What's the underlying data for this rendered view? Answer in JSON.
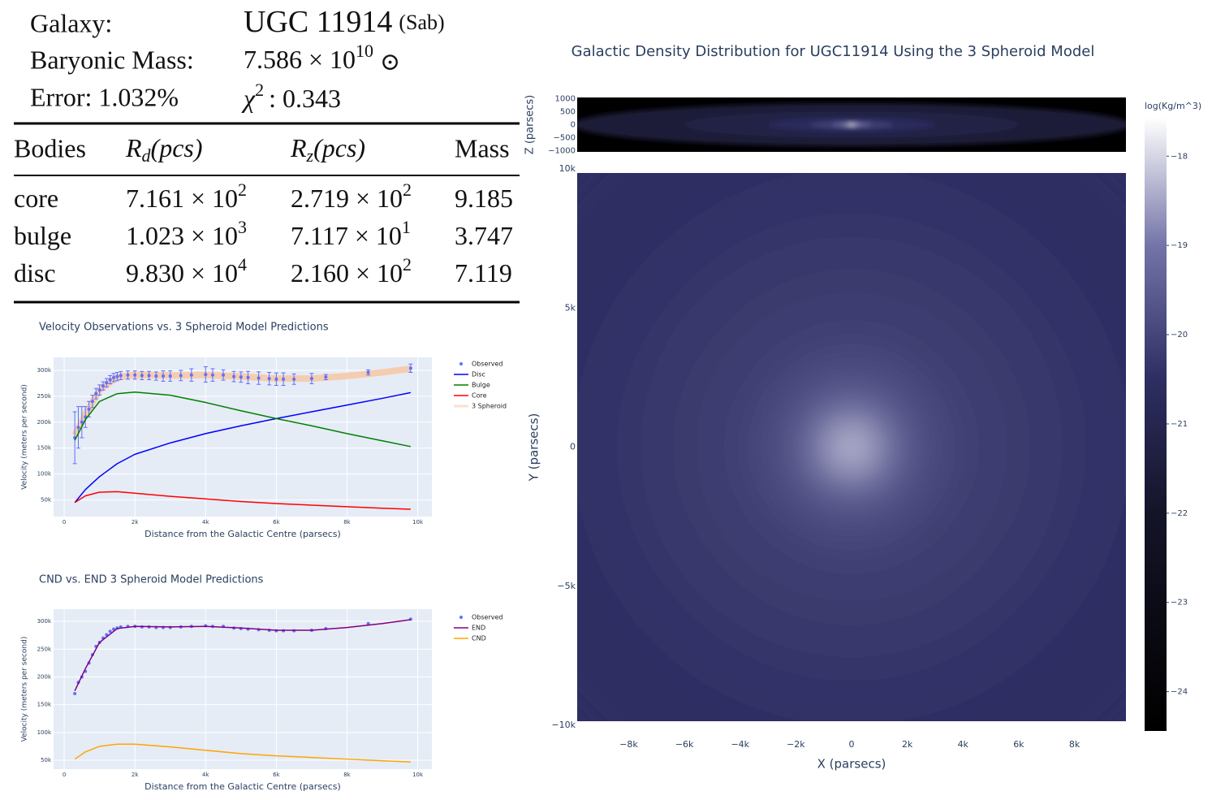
{
  "info": {
    "galaxy_label": "Galaxy:",
    "galaxy": "UGC 11914",
    "galaxy_type": "(Sab)",
    "mass_label": "Baryonic Mass:",
    "mass": [
      "7.586 × 10",
      "10",
      "⊙"
    ],
    "error": "Error: 1.032%",
    "chi": [
      "χ",
      "2",
      ": 0.343"
    ]
  },
  "table": {
    "header": [
      [
        "Bodies"
      ],
      [
        "R",
        "d",
        "(pcs)"
      ],
      [
        "R",
        "z",
        "(pcs)"
      ],
      [
        "Mass"
      ]
    ],
    "rows": [
      [
        [
          "core"
        ],
        [
          "7.161 × 10",
          "2"
        ],
        [
          "2.719 × 10",
          "2"
        ],
        [
          "9.185"
        ]
      ],
      [
        [
          "bulge"
        ],
        [
          "1.023 × 10",
          "3"
        ],
        [
          "7.117 × 10",
          "1"
        ],
        [
          "3.747"
        ]
      ],
      [
        [
          "disc"
        ],
        [
          "9.830 × 10",
          "4"
        ],
        [
          "2.160 × 10",
          "2"
        ],
        [
          "7.119"
        ]
      ]
    ]
  },
  "chart_data": [
    {
      "type": "line",
      "title": "Velocity Observations vs. 3 Spheroid Model Predictions",
      "x_label": "Distance from the Galactic Centre (parsecs)",
      "y_label": "Velocity (meters per second)",
      "xlim": [
        -300,
        10400
      ],
      "ylim": [
        18000,
        325000
      ],
      "xticks": [
        0,
        {
          "value": 2000,
          "label": "2k"
        },
        {
          "value": 4000,
          "label": "4k"
        },
        {
          "value": 6000,
          "label": "6k"
        },
        {
          "value": 8000,
          "label": "8k"
        },
        {
          "value": 10000,
          "label": "10k"
        }
      ],
      "yticks": [
        {
          "value": 50000,
          "label": "50k"
        },
        {
          "value": 100000,
          "label": "100k"
        },
        {
          "value": 150000,
          "label": "150k"
        },
        {
          "value": 200000,
          "label": "200k"
        },
        {
          "value": 250000,
          "label": "250k"
        },
        {
          "value": 300000,
          "label": "300k"
        }
      ],
      "grid": true,
      "series": [
        {
          "name": "3 Spheroid",
          "color": "#f4cdb0",
          "mode": "lines",
          "width": 8,
          "x": [
            300,
            600,
            1000,
            1500,
            2000,
            3000,
            4000,
            5000,
            6000,
            7000,
            8000,
            9000,
            9800
          ],
          "values": [
            175000,
            215000,
            262000,
            287000,
            291000,
            290000,
            291000,
            288000,
            284000,
            284000,
            289000,
            296000,
            303000
          ]
        },
        {
          "name": "Observed",
          "color": "#636efa",
          "mode": "markers",
          "x": [
            300,
            400,
            500,
            600,
            700,
            800,
            900,
            1000,
            1100,
            1200,
            1300,
            1400,
            1500,
            1600,
            1800,
            2000,
            2200,
            2400,
            2600,
            2800,
            3000,
            3300,
            3600,
            4000,
            4200,
            4500,
            4800,
            5000,
            5200,
            5500,
            5800,
            6000,
            6200,
            6500,
            7000,
            7400,
            8600,
            9800
          ],
          "values": [
            170000,
            190000,
            200000,
            210000,
            225000,
            240000,
            255000,
            262000,
            270000,
            276000,
            282000,
            286000,
            288000,
            290000,
            291000,
            291000,
            290000,
            290000,
            289000,
            289000,
            289000,
            290000,
            291000,
            292000,
            291000,
            291000,
            288000,
            287000,
            286000,
            285000,
            284000,
            283000,
            283000,
            283000,
            284000,
            287000,
            296000,
            304000
          ],
          "errors": [
            50000,
            40000,
            30000,
            20000,
            15000,
            12000,
            10000,
            10000,
            8000,
            8000,
            8000,
            8000,
            8000,
            8000,
            8000,
            8000,
            8000,
            8000,
            8000,
            10000,
            10000,
            10000,
            12000,
            15000,
            12000,
            10000,
            10000,
            10000,
            12000,
            12000,
            12000,
            12000,
            12000,
            10000,
            10000,
            5000,
            5000,
            8000
          ]
        },
        {
          "name": "Disc",
          "color": "#0000ff",
          "mode": "lines",
          "width": 1.5,
          "x": [
            300,
            600,
            1000,
            1500,
            2000,
            3000,
            4000,
            5000,
            6000,
            7000,
            8000,
            9000,
            9800
          ],
          "values": [
            45000,
            70000,
            95000,
            120000,
            138000,
            160000,
            178000,
            193000,
            207000,
            220000,
            233000,
            246000,
            257000
          ]
        },
        {
          "name": "Bulge",
          "color": "#008000",
          "mode": "lines",
          "width": 1.5,
          "x": [
            300,
            600,
            1000,
            1500,
            2000,
            3000,
            4000,
            5000,
            6000,
            7000,
            8000,
            9000,
            9800
          ],
          "values": [
            165000,
            205000,
            240000,
            255000,
            258000,
            252000,
            238000,
            222000,
            207000,
            193000,
            178000,
            164000,
            153000
          ]
        },
        {
          "name": "Core",
          "color": "#ff0000",
          "mode": "lines",
          "width": 1.5,
          "x": [
            300,
            600,
            1000,
            1500,
            2000,
            3000,
            4000,
            5000,
            6000,
            7000,
            8000,
            9000,
            9800
          ],
          "values": [
            45000,
            58000,
            65000,
            66000,
            63000,
            57000,
            52000,
            47000,
            43000,
            40000,
            37000,
            34000,
            32000
          ]
        }
      ],
      "legend_order": [
        1,
        2,
        3,
        4,
        0
      ]
    },
    {
      "type": "line",
      "title": "CND vs. END 3 Spheroid Model Predictions",
      "x_label": "Distance from the Galactic Centre (parsecs)",
      "y_label": "Velocity (meters per second)",
      "xlim": [
        -300,
        10400
      ],
      "ylim": [
        34000,
        322000
      ],
      "xticks": [
        0,
        {
          "value": 2000,
          "label": "2k"
        },
        {
          "value": 4000,
          "label": "4k"
        },
        {
          "value": 6000,
          "label": "6k"
        },
        {
          "value": 8000,
          "label": "8k"
        },
        {
          "value": 10000,
          "label": "10k"
        }
      ],
      "yticks": [
        {
          "value": 50000,
          "label": "50k"
        },
        {
          "value": 100000,
          "label": "100k"
        },
        {
          "value": 150000,
          "label": "150k"
        },
        {
          "value": 200000,
          "label": "200k"
        },
        {
          "value": 250000,
          "label": "250k"
        },
        {
          "value": 300000,
          "label": "300k"
        }
      ],
      "grid": true,
      "series": [
        {
          "name": "Observed",
          "color": "#636efa",
          "mode": "markers",
          "x": [
            300,
            400,
            500,
            600,
            700,
            800,
            900,
            1000,
            1100,
            1200,
            1300,
            1400,
            1500,
            1600,
            1800,
            2000,
            2200,
            2400,
            2600,
            2800,
            3000,
            3300,
            3600,
            4000,
            4200,
            4500,
            4800,
            5000,
            5200,
            5500,
            5800,
            6000,
            6200,
            6500,
            7000,
            7400,
            8600,
            9800
          ],
          "values": [
            170000,
            190000,
            200000,
            210000,
            225000,
            240000,
            255000,
            262000,
            270000,
            276000,
            282000,
            286000,
            288000,
            290000,
            291000,
            291000,
            290000,
            290000,
            289000,
            289000,
            289000,
            290000,
            291000,
            292000,
            291000,
            291000,
            288000,
            287000,
            286000,
            285000,
            284000,
            283000,
            283000,
            283000,
            284000,
            287000,
            296000,
            304000
          ]
        },
        {
          "name": "END",
          "color": "#800080",
          "mode": "lines",
          "width": 1.5,
          "x": [
            300,
            600,
            1000,
            1500,
            2000,
            3000,
            4000,
            5000,
            6000,
            7000,
            8000,
            9000,
            9800
          ],
          "values": [
            175000,
            215000,
            262000,
            287000,
            291000,
            290000,
            291000,
            288000,
            284000,
            284000,
            289000,
            296000,
            303000
          ]
        },
        {
          "name": "CND",
          "color": "#ffa500",
          "mode": "lines",
          "width": 1.5,
          "x": [
            300,
            600,
            1000,
            1500,
            2000,
            3000,
            4000,
            5000,
            6000,
            7000,
            8000,
            9000,
            9800
          ],
          "values": [
            52000,
            65000,
            75000,
            79000,
            79000,
            74000,
            68000,
            62000,
            58000,
            55000,
            52000,
            49000,
            47000
          ]
        }
      ],
      "legend_order": [
        0,
        1,
        2
      ]
    },
    {
      "type": "density",
      "title": "Galactic Density Distribution for UGC11914 Using the 3 Spheroid Model",
      "x_label": "X (parsecs)",
      "y_label": "Y (parsecs)",
      "z_label": "Z (parsecs)",
      "xlim": [
        -9850,
        9850
      ],
      "ylim": [
        -10000,
        10000
      ],
      "zlim": [
        -1050,
        1050
      ],
      "xticks": [
        {
          "value": -8000,
          "label": "−8k"
        },
        {
          "value": -6000,
          "label": "−6k"
        },
        {
          "value": -4000,
          "label": "−4k"
        },
        {
          "value": -2000,
          "label": "−2k"
        },
        0,
        {
          "value": 2000,
          "label": "2k"
        },
        {
          "value": 4000,
          "label": "4k"
        },
        {
          "value": 6000,
          "label": "6k"
        },
        {
          "value": 8000,
          "label": "8k"
        }
      ],
      "yticks": [
        {
          "value": -10000,
          "label": "−10k"
        },
        {
          "value": -5000,
          "label": "−5k"
        },
        0,
        {
          "value": 5000,
          "label": "5k"
        },
        {
          "value": 10000,
          "label": "10k"
        }
      ],
      "zticks": [
        1000,
        500,
        0,
        {
          "value": -500,
          "label": "−500"
        },
        {
          "value": -1000,
          "label": "−1000"
        }
      ],
      "face_on": {
        "r": [
          0,
          500,
          1000,
          1500,
          2000,
          3000,
          4000,
          6000,
          8000,
          10000,
          14000
        ],
        "values": [
          -17.6,
          -18.1,
          -18.6,
          -19.1,
          -19.4,
          -19.8,
          -20.0,
          -20.2,
          -20.3,
          -20.4,
          -20.5
        ]
      },
      "edge_on": {
        "r": [
          0,
          300,
          700,
          1500,
          3000,
          6000,
          10000
        ],
        "values": [
          -17.8,
          -18.6,
          -19.4,
          -20.2,
          -20.7,
          -21.2,
          -21.6
        ]
      },
      "background": -24.4,
      "colorbar_title": "log(Kg/m^3)",
      "colorbar_lim": [
        -24.44,
        -17.57
      ],
      "colorbar_ticks": [
        {
          "value": -18,
          "label": "−18"
        },
        {
          "value": -19,
          "label": "−19"
        },
        {
          "value": -20,
          "label": "−20"
        },
        {
          "value": -21,
          "label": "−21"
        },
        {
          "value": -22,
          "label": "−22"
        },
        {
          "value": -23,
          "label": "−23"
        },
        {
          "value": -24,
          "label": "−24"
        }
      ],
      "colorscale": [
        [
          -24.44,
          "#000000"
        ],
        [
          -22,
          "#141428"
        ],
        [
          -20.5,
          "#2e2e63"
        ],
        [
          -19,
          "#7474a8"
        ],
        [
          -17.57,
          "#ffffff"
        ]
      ]
    }
  ]
}
